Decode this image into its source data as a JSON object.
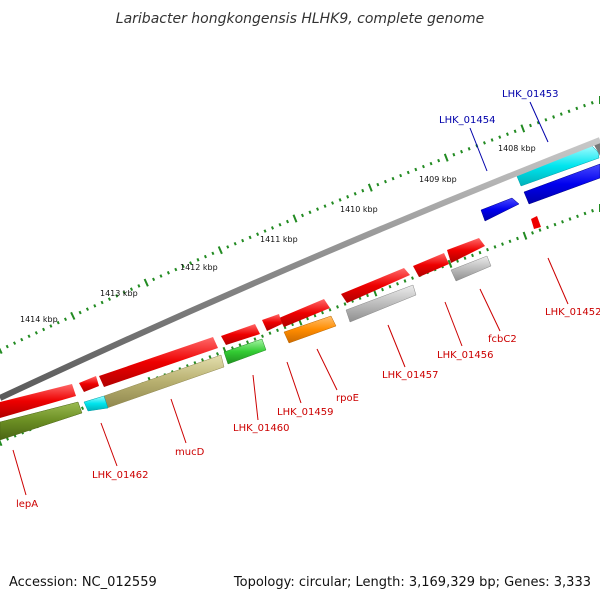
{
  "title": "Laribacter hongkongensis HLHK9, complete genome",
  "footer": {
    "accession": "Accession: NC_012559",
    "summary": "Topology: circular; Length: 3,169,329 bp; Genes: 3,333"
  },
  "ruler": [
    "1408 kbp",
    "1409 kbp",
    "1410 kbp",
    "1411 kbp",
    "1412 kbp",
    "1413 kbp",
    "1414 kbp"
  ],
  "genes": {
    "lhk_01453": "LHK_01453",
    "lhk_01454": "LHK_01454",
    "lhk_01452": "LHK_01452",
    "fcbc2": "fcbC2",
    "lhk_01456": "LHK_01456",
    "lhk_01457": "LHK_01457",
    "rpoe": "rpoE",
    "lhk_01459": "LHK_01459",
    "lhk_01460": "LHK_01460",
    "mucd": "mucD",
    "lhk_01462": "LHK_01462",
    "lepa": "lepA"
  },
  "colors": {
    "cds": "#ee0000",
    "backbone": "#8a8a8a",
    "cyan": "#00e5ee",
    "blue": "#0000ee",
    "gray": "#b8b8b8",
    "orange": "#ff8c00",
    "green": "#33cc33",
    "khaki": "#b8b070",
    "olive": "#6b8e23",
    "tick": "#228b22"
  }
}
